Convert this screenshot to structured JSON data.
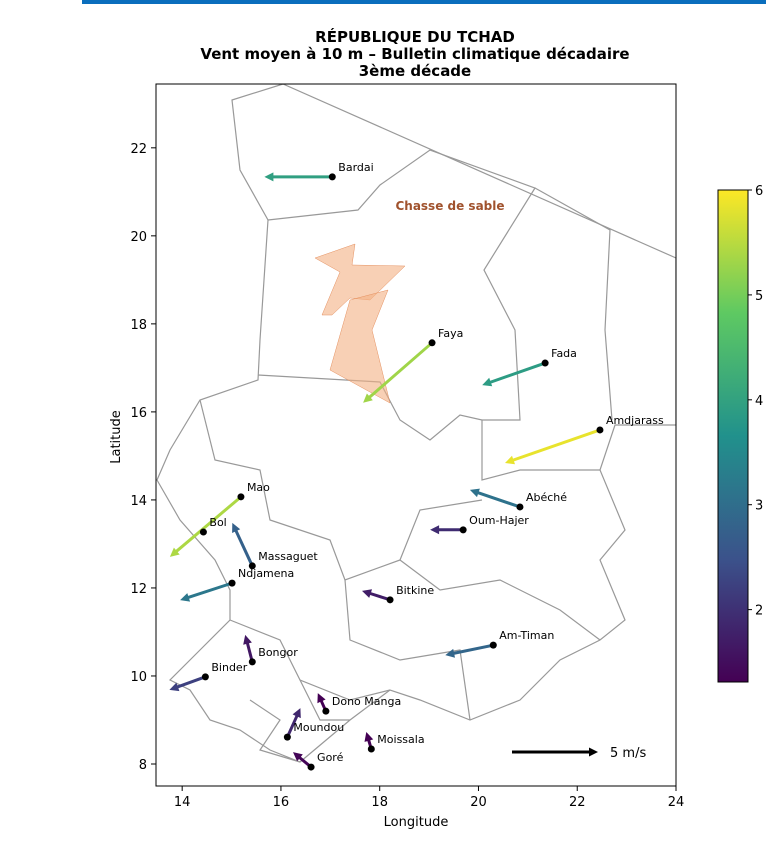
{
  "chart_data": {
    "type": "quiver",
    "title": [
      "RÉPUBLIQUE DU TCHAD",
      "Vent moyen à 10 m – Bulletin climatique décadaire",
      "3ème décade"
    ],
    "xlabel": "Longitude",
    "ylabel": "Latitude",
    "xlim": [
      13.47,
      24
    ],
    "ylim": [
      7.5,
      23.45
    ],
    "xticks": [
      14,
      16,
      18,
      20,
      22,
      24
    ],
    "yticks": [
      8,
      10,
      12,
      14,
      16,
      18,
      20,
      22
    ],
    "annotation": "Chasse de sable",
    "key": {
      "value": 5,
      "label": "5 m/s"
    },
    "colorbar": {
      "colormap": "viridis",
      "clim": [
        1.31,
        6
      ],
      "ticks": [
        2,
        3,
        4,
        5,
        6
      ]
    },
    "stations": [
      {
        "name": "Bardai",
        "lon": 17.04,
        "lat": 21.34,
        "u": -3.95,
        "v": 0
      },
      {
        "name": "Faya",
        "lon": 19.06,
        "lat": 17.57,
        "u": -4.01,
        "v": -3.49
      },
      {
        "name": "Fada",
        "lon": 21.35,
        "lat": 17.11,
        "u": -3.66,
        "v": -1.28
      },
      {
        "name": "Amdjarass",
        "lon": 22.46,
        "lat": 15.59,
        "u": -5.52,
        "v": -1.92
      },
      {
        "name": "Abéché",
        "lon": 20.84,
        "lat": 13.84,
        "u": -2.91,
        "v": 0.99
      },
      {
        "name": "Oum-Hajer",
        "lon": 19.69,
        "lat": 13.32,
        "u": -1.92,
        "v": 0
      },
      {
        "name": "Mao",
        "lon": 15.19,
        "lat": 14.07,
        "u": -4.13,
        "v": -3.49
      },
      {
        "name": "Bol",
        "lon": 14.43,
        "lat": 13.27
      },
      {
        "name": "Massaguet",
        "lon": 15.42,
        "lat": 12.5,
        "u": -1.16,
        "v": 2.5
      },
      {
        "name": "Ndjamena",
        "lon": 15.01,
        "lat": 12.11,
        "u": -3.02,
        "v": -0.99
      },
      {
        "name": "Bitkine",
        "lon": 18.21,
        "lat": 11.73,
        "u": -1.63,
        "v": 0.52
      },
      {
        "name": "Am-Timan",
        "lon": 20.3,
        "lat": 10.7,
        "u": -2.79,
        "v": -0.58
      },
      {
        "name": "Bongor",
        "lon": 15.42,
        "lat": 10.32,
        "u": -0.41,
        "v": 1.57
      },
      {
        "name": "Binder",
        "lon": 14.47,
        "lat": 9.98,
        "u": -2.09,
        "v": -0.76
      },
      {
        "name": "Dono Manga",
        "lon": 16.91,
        "lat": 9.2,
        "u": -0.47,
        "v": 1.05
      },
      {
        "name": "Moundou",
        "lon": 16.13,
        "lat": 8.61,
        "u": 0.76,
        "v": 1.69
      },
      {
        "name": "Moissala",
        "lon": 17.83,
        "lat": 8.34,
        "u": -0.29,
        "v": 0.99
      },
      {
        "name": "Goré",
        "lon": 16.61,
        "lat": 7.93,
        "u": -1.05,
        "v": 0.87
      }
    ]
  }
}
